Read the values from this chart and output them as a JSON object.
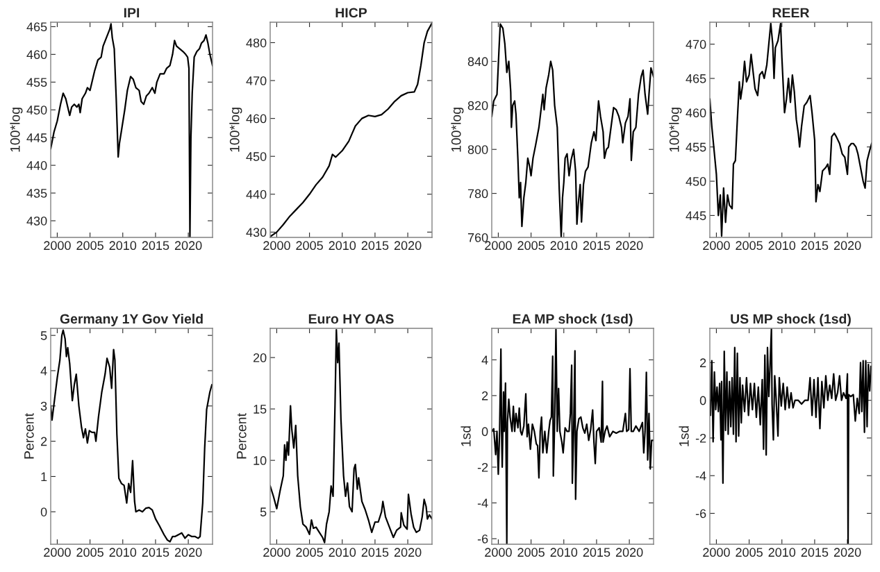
{
  "chart_data": [
    {
      "type": "line",
      "title": "IPI",
      "ylabel": "100*log",
      "xlim": [
        1999.0,
        2023.7
      ],
      "xticks": [
        2000,
        2005,
        2010,
        2015,
        2020
      ],
      "ylim": [
        427,
        465.8
      ],
      "yticks": [
        430,
        435,
        440,
        445,
        450,
        455,
        460,
        465
      ],
      "grid": false,
      "series": [
        {
          "color": "#000000",
          "x": [
            1999.0,
            1999.5,
            2000.0,
            2000.5,
            2000.9,
            2001.3,
            2001.6,
            2001.9,
            2002.2,
            2002.6,
            2003.0,
            2003.3,
            2003.5,
            2003.8,
            2004.3,
            2004.6,
            2005.0,
            2005.3,
            2005.7,
            2006.2,
            2006.7,
            2007.0,
            2007.5,
            2008.0,
            2008.2,
            2008.4,
            2008.7,
            2009.0,
            2009.3,
            2009.5,
            2009.9,
            2010.3,
            2010.7,
            2011.2,
            2011.6,
            2012.0,
            2012.5,
            2012.8,
            2013.2,
            2013.6,
            2014.0,
            2014.5,
            2014.9,
            2015.2,
            2015.7,
            2016.3,
            2016.7,
            2017.2,
            2017.6,
            2017.9,
            2018.2,
            2018.7,
            2019.2,
            2019.6,
            2019.9,
            2020.1,
            2020.25,
            2020.4,
            2020.6,
            2020.9,
            2021.3,
            2021.7,
            2022.0,
            2022.4,
            2022.7,
            2023.0,
            2023.3,
            2023.7
          ],
          "values": [
            443,
            446,
            448,
            451,
            453,
            452,
            450.5,
            449,
            450.5,
            451,
            450.5,
            451,
            449.5,
            452,
            453,
            454,
            453.5,
            455,
            457,
            459,
            459.5,
            461.5,
            463,
            464.5,
            465.5,
            463,
            461,
            452,
            441.5,
            444,
            447,
            450,
            453.5,
            456,
            455.5,
            454,
            453.5,
            451.5,
            451,
            452.5,
            453,
            454,
            453,
            455,
            456.5,
            456.5,
            457.5,
            458,
            460,
            462.5,
            461.5,
            461,
            460.5,
            460,
            459.5,
            457.5,
            427,
            445,
            453,
            459.5,
            460.5,
            461,
            462,
            462.5,
            463.5,
            462,
            460,
            458
          ]
        }
      ]
    },
    {
      "type": "line",
      "title": "HICP",
      "ylabel": "100*log",
      "xlim": [
        1999.0,
        2023.7
      ],
      "xticks": [
        2000,
        2005,
        2010,
        2015,
        2020
      ],
      "ylim": [
        428.6,
        485.4
      ],
      "yticks": [
        430,
        440,
        450,
        460,
        470,
        480
      ],
      "grid": false,
      "series": [
        {
          "color": "#000000",
          "x": [
            1999.0,
            2000.0,
            2001.0,
            2002.0,
            2003.0,
            2004.0,
            2005.0,
            2006.0,
            2007.0,
            2008.0,
            2008.5,
            2009.0,
            2010.0,
            2011.0,
            2012.0,
            2013.0,
            2014.0,
            2015.0,
            2016.0,
            2017.0,
            2018.0,
            2019.0,
            2020.0,
            2021.0,
            2021.5,
            2022.0,
            2022.5,
            2023.0,
            2023.7
          ],
          "values": [
            428.8,
            430,
            432,
            434.2,
            436,
            437.8,
            440,
            442.5,
            444.5,
            447.5,
            450.5,
            449.8,
            451.5,
            454,
            458,
            460,
            460.8,
            460.5,
            461,
            462.5,
            464.5,
            466,
            466.8,
            467,
            469,
            474,
            480,
            483,
            485.2
          ]
        }
      ]
    },
    {
      "type": "line",
      "ylabel": "100*log",
      "xlim": [
        1999.0,
        2023.7
      ],
      "xticks": [
        2000,
        2005,
        2010,
        2015,
        2020
      ],
      "ylim": [
        760,
        857.8
      ],
      "yticks": [
        760,
        780,
        800,
        820,
        840
      ],
      "grid": false,
      "series": [
        {
          "color": "#000000",
          "x": [
            1999.0,
            1999.3,
            1999.8,
            2000.1,
            2000.3,
            2000.7,
            2001.0,
            2001.3,
            2001.6,
            2001.9,
            2002.0,
            2002.2,
            2002.5,
            2002.7,
            2003.0,
            2003.2,
            2003.4,
            2003.6,
            2003.9,
            2004.2,
            2004.5,
            2004.8,
            2005.0,
            2005.3,
            2005.7,
            2006.2,
            2006.6,
            2006.8,
            2007.0,
            2007.3,
            2007.7,
            2008.0,
            2008.3,
            2008.6,
            2009.0,
            2009.3,
            2009.6,
            2009.8,
            2010.0,
            2010.2,
            2010.5,
            2010.8,
            2011.1,
            2011.5,
            2011.8,
            2012.0,
            2012.2,
            2012.5,
            2012.7,
            2013.0,
            2013.3,
            2013.7,
            2014.2,
            2014.6,
            2014.9,
            2015.3,
            2015.6,
            2016.0,
            2016.2,
            2016.5,
            2016.8,
            2017.2,
            2017.6,
            2018.0,
            2018.4,
            2018.8,
            2019.0,
            2019.4,
            2019.8,
            2020.1,
            2020.3,
            2020.6,
            2021.0,
            2021.4,
            2021.8,
            2022.1,
            2022.4,
            2022.8,
            2023.0,
            2023.3,
            2023.7
          ],
          "values": [
            815,
            822,
            825,
            845,
            857,
            855,
            848,
            835,
            840,
            826,
            810,
            820,
            822,
            816,
            795,
            778,
            785,
            765,
            778,
            785,
            796,
            792,
            788,
            796,
            802,
            810,
            820,
            825,
            818,
            828,
            834,
            840,
            836,
            820,
            810,
            782,
            760,
            778,
            785,
            796,
            798,
            788,
            795,
            800,
            790,
            766,
            775,
            784,
            767,
            784,
            790,
            792,
            803,
            808,
            804,
            822,
            815,
            808,
            796,
            800,
            801,
            810,
            819,
            818,
            815,
            810,
            803,
            812,
            815,
            823,
            795,
            808,
            810,
            825,
            833,
            836,
            825,
            816,
            825,
            837,
            833
          ]
        }
      ]
    },
    {
      "type": "line",
      "title": "REER",
      "ylabel": "100*log",
      "xlim": [
        1999.0,
        2023.7
      ],
      "xticks": [
        2000,
        2005,
        2010,
        2015,
        2020
      ],
      "ylim": [
        441.8,
        473.2
      ],
      "yticks": [
        445,
        450,
        455,
        460,
        465,
        470
      ],
      "grid": false,
      "series": [
        {
          "color": "#000000",
          "x": [
            1999.0,
            1999.3,
            1999.6,
            2000.0,
            2000.3,
            2000.6,
            2000.8,
            2001.1,
            2001.4,
            2001.7,
            2002.0,
            2002.4,
            2002.6,
            2002.9,
            2003.2,
            2003.5,
            2003.7,
            2004.0,
            2004.3,
            2004.6,
            2005.0,
            2005.3,
            2005.6,
            2005.9,
            2006.3,
            2006.6,
            2007.0,
            2007.3,
            2007.7,
            2008.0,
            2008.3,
            2008.6,
            2008.8,
            2009.0,
            2009.4,
            2009.8,
            2010.0,
            2010.4,
            2010.7,
            2011.0,
            2011.3,
            2011.6,
            2011.9,
            2012.2,
            2012.5,
            2012.7,
            2013.0,
            2013.4,
            2013.8,
            2014.3,
            2014.6,
            2015.0,
            2015.2,
            2015.5,
            2015.8,
            2016.2,
            2016.7,
            2017.0,
            2017.3,
            2017.6,
            2018.0,
            2018.3,
            2018.8,
            2019.2,
            2019.6,
            2020.0,
            2020.2,
            2020.6,
            2020.9,
            2021.3,
            2021.6,
            2022.0,
            2022.4,
            2022.7,
            2023.0,
            2023.4,
            2023.7
          ],
          "values": [
            462,
            458,
            455,
            451,
            445,
            448,
            442,
            449,
            444,
            448,
            446.5,
            446,
            452.5,
            453,
            459,
            464.5,
            462,
            464,
            467.5,
            464.5,
            465.5,
            468.5,
            466,
            463.5,
            462.5,
            465.5,
            466,
            465,
            467,
            470,
            473,
            470,
            465,
            469.5,
            470.5,
            473,
            468,
            460,
            462,
            465,
            461.5,
            465.5,
            463,
            459,
            457,
            455,
            458,
            461,
            461.5,
            462.5,
            460,
            456,
            447,
            449.5,
            448.5,
            451.5,
            452,
            452.5,
            451,
            456.5,
            457,
            456.5,
            455.5,
            454,
            453.5,
            451,
            455,
            455.5,
            455.5,
            455,
            454,
            452,
            450,
            449,
            453,
            454.5,
            455.5
          ]
        }
      ]
    },
    {
      "type": "line",
      "title": "Germany 1Y Gov Yield",
      "ylabel": "Percent",
      "xlim": [
        1999.0,
        2023.7
      ],
      "xticks": [
        2000,
        2005,
        2010,
        2015,
        2020
      ],
      "ylim": [
        -0.92,
        5.2
      ],
      "yticks": [
        0,
        1,
        2,
        3,
        4,
        5
      ],
      "grid": false,
      "series": [
        {
          "color": "#000000",
          "x": [
            1999.0,
            1999.2,
            1999.6,
            2000.0,
            2000.4,
            2000.7,
            2000.9,
            2001.2,
            2001.4,
            2001.6,
            2001.9,
            2002.3,
            2002.6,
            2002.9,
            2003.3,
            2003.7,
            2004.0,
            2004.3,
            2004.6,
            2004.9,
            2005.3,
            2005.7,
            2005.9,
            2006.3,
            2006.8,
            2007.3,
            2007.6,
            2008.0,
            2008.3,
            2008.6,
            2008.8,
            2009.1,
            2009.4,
            2009.8,
            2010.2,
            2010.6,
            2010.9,
            2011.2,
            2011.5,
            2011.8,
            2012.0,
            2012.5,
            2013.0,
            2013.5,
            2014.0,
            2014.5,
            2015.0,
            2015.6,
            2016.3,
            2016.8,
            2017.2,
            2017.6,
            2018.0,
            2018.5,
            2019.0,
            2019.5,
            2020.0,
            2020.5,
            2021.0,
            2021.5,
            2021.8,
            2022.2,
            2022.5,
            2022.8,
            2023.0,
            2023.3,
            2023.6
          ],
          "values": [
            3.0,
            2.6,
            3.2,
            3.8,
            4.3,
            5.0,
            5.15,
            4.9,
            4.4,
            4.65,
            4.2,
            3.15,
            3.6,
            3.9,
            3.0,
            2.4,
            2.1,
            2.35,
            1.95,
            2.3,
            2.25,
            2.25,
            2.0,
            2.7,
            3.4,
            3.9,
            4.35,
            4.1,
            3.5,
            4.6,
            4.3,
            2.2,
            0.95,
            0.8,
            0.75,
            0.25,
            0.8,
            0.55,
            1.45,
            0.3,
            0.0,
            0.05,
            0.0,
            0.1,
            0.12,
            0.05,
            -0.2,
            -0.4,
            -0.65,
            -0.8,
            -0.85,
            -0.7,
            -0.7,
            -0.65,
            -0.6,
            -0.75,
            -0.65,
            -0.7,
            -0.7,
            -0.75,
            -0.7,
            0.25,
            1.8,
            2.9,
            3.1,
            3.4,
            3.6
          ]
        }
      ]
    },
    {
      "type": "line",
      "title": "Euro HY OAS",
      "ylabel": "Percent",
      "xlim": [
        1999.0,
        2023.7
      ],
      "xticks": [
        2000,
        2005,
        2010,
        2015,
        2020
      ],
      "ylim": [
        1.84,
        22.84
      ],
      "yticks": [
        5,
        10,
        15,
        20
      ],
      "grid": false,
      "series": [
        {
          "color": "#000000",
          "x": [
            1999.0,
            1999.5,
            2000.0,
            2000.5,
            2001.0,
            2001.2,
            2001.4,
            2001.6,
            2001.8,
            2002.1,
            2002.3,
            2002.6,
            2002.9,
            2003.2,
            2003.6,
            2004.0,
            2004.5,
            2005.0,
            2005.3,
            2005.6,
            2006.0,
            2006.5,
            2007.0,
            2007.3,
            2007.6,
            2008.0,
            2008.3,
            2008.6,
            2008.9,
            2009.1,
            2009.3,
            2009.5,
            2009.8,
            2010.2,
            2010.5,
            2010.8,
            2011.1,
            2011.5,
            2011.8,
            2012.0,
            2012.3,
            2012.5,
            2013.0,
            2013.5,
            2014.0,
            2014.5,
            2015.0,
            2015.5,
            2016.0,
            2016.2,
            2016.6,
            2017.2,
            2017.8,
            2018.3,
            2018.9,
            2019.0,
            2019.4,
            2019.9,
            2020.1,
            2020.5,
            2020.9,
            2021.3,
            2021.8,
            2022.2,
            2022.5,
            2022.8,
            2023.0,
            2023.3,
            2023.7
          ],
          "values": [
            7.5,
            6.5,
            5.3,
            7.0,
            8.5,
            11.5,
            10,
            11.8,
            10.5,
            15.3,
            13.0,
            11.2,
            13.4,
            8.5,
            5.5,
            3.8,
            3.5,
            2.8,
            4.2,
            3.4,
            3.5,
            3.0,
            2.5,
            2.0,
            3.8,
            5.0,
            7.5,
            6.5,
            15.5,
            22.7,
            19.5,
            21.4,
            14.0,
            8.5,
            6.5,
            7.8,
            5.5,
            5.0,
            9.2,
            9.6,
            7.2,
            8.3,
            6.0,
            5.2,
            4.2,
            3.0,
            4.0,
            4.0,
            5.0,
            6.0,
            4.5,
            3.5,
            2.5,
            3.2,
            3.5,
            4.9,
            3.7,
            3.3,
            6.7,
            4.8,
            3.5,
            3.0,
            3.2,
            4.5,
            6.2,
            5.5,
            4.3,
            4.7,
            4.3
          ]
        }
      ]
    },
    {
      "type": "line",
      "title": "EA MP shock (1sd)",
      "ylabel": "1sd",
      "xlim": [
        1999.0,
        2023.7
      ],
      "xticks": [
        2000,
        2005,
        2010,
        2015,
        2020
      ],
      "ylim": [
        -6.31,
        5.76
      ],
      "yticks": [
        -6,
        -4,
        -2,
        0,
        2,
        4
      ],
      "grid": false,
      "series": [
        {
          "color": "#000000",
          "x": [
            1999.0,
            1999.3,
            1999.6,
            1999.8,
            2000.0,
            2000.2,
            2000.4,
            2000.5,
            2000.6,
            2000.8,
            2000.9,
            2001.1,
            2001.3,
            2001.4,
            2001.6,
            2001.8,
            2002.1,
            2002.3,
            2002.5,
            2002.7,
            2003.0,
            2003.2,
            2003.4,
            2003.6,
            2003.9,
            2004.2,
            2004.4,
            2004.6,
            2004.9,
            2005.2,
            2005.5,
            2005.8,
            2006.0,
            2006.2,
            2006.4,
            2006.6,
            2006.8,
            2007.1,
            2007.4,
            2007.7,
            2007.9,
            2008.1,
            2008.3,
            2008.4,
            2008.6,
            2008.8,
            2009.0,
            2009.2,
            2009.4,
            2009.7,
            2009.9,
            2010.2,
            2010.5,
            2010.8,
            2011.0,
            2011.2,
            2011.3,
            2011.5,
            2011.7,
            2011.8,
            2012.0,
            2012.3,
            2012.6,
            2012.9,
            2013.2,
            2013.5,
            2013.8,
            2014.1,
            2014.4,
            2014.6,
            2014.8,
            2015.0,
            2015.4,
            2015.7,
            2015.9,
            2016.0,
            2016.3,
            2016.6,
            2017.0,
            2017.5,
            2018.0,
            2018.5,
            2019.0,
            2019.4,
            2019.6,
            2019.9,
            2020.1,
            2020.3,
            2020.6,
            2021.0,
            2021.5,
            2022.0,
            2022.2,
            2022.4,
            2022.6,
            2022.8,
            2023.0,
            2023.2,
            2023.4,
            2023.7
          ],
          "values": [
            0.0,
            0.15,
            -1.3,
            0.0,
            -2.4,
            0.0,
            4.6,
            0.0,
            -2.0,
            2.2,
            0.0,
            2.7,
            -6.3,
            0.5,
            1.8,
            0.8,
            0.0,
            1.4,
            0.0,
            1.0,
            0.2,
            1.3,
            0.0,
            -0.2,
            0.3,
            2.1,
            -0.3,
            0.4,
            -1.0,
            0.4,
            0.0,
            -0.7,
            -0.8,
            -2.6,
            0.0,
            0.8,
            -1.2,
            0.0,
            -1.2,
            0.0,
            0.6,
            0.8,
            4.2,
            -2.5,
            0.5,
            5.7,
            0.0,
            2.4,
            0.0,
            -0.6,
            -1.2,
            0.2,
            0.0,
            0.0,
            1.0,
            3.7,
            -2.9,
            0.0,
            4.5,
            -3.8,
            0.0,
            0.7,
            0.8,
            0.2,
            -0.1,
            0.4,
            -0.5,
            0.1,
            1.2,
            -0.6,
            -1.8,
            0.0,
            0.2,
            -0.6,
            2.8,
            -0.6,
            0.0,
            0.3,
            -0.3,
            0.0,
            -0.1,
            0.0,
            0.0,
            1.0,
            0.0,
            0.1,
            3.5,
            0.0,
            0.0,
            0.3,
            0.0,
            0.5,
            -1.2,
            0.0,
            3.3,
            -1.6,
            1.0,
            -2.1,
            -0.5,
            -0.5
          ]
        }
      ]
    },
    {
      "type": "line",
      "title": "US MP shock (1sd)",
      "ylabel": "1sd",
      "xlim": [
        1999.0,
        2023.7
      ],
      "xticks": [
        2000,
        2005,
        2010,
        2015,
        2020
      ],
      "ylim": [
        -7.64,
        3.82
      ],
      "yticks": [
        -6,
        -4,
        -2,
        0,
        2
      ],
      "grid": false,
      "series": [
        {
          "color": "#000000",
          "x": [
            1999.0,
            1999.1,
            1999.3,
            1999.5,
            1999.7,
            1999.9,
            2000.1,
            2000.3,
            2000.5,
            2000.7,
            2000.8,
            2001.0,
            2001.2,
            2001.4,
            2001.6,
            2001.8,
            2002.0,
            2002.2,
            2002.4,
            2002.6,
            2002.8,
            2003.0,
            2003.2,
            2003.4,
            2003.6,
            2003.8,
            2004.0,
            2004.3,
            2004.6,
            2004.9,
            2005.2,
            2005.5,
            2005.8,
            2006.1,
            2006.4,
            2006.7,
            2007.0,
            2007.2,
            2007.4,
            2007.6,
            2007.8,
            2008.0,
            2008.2,
            2008.4,
            2008.5,
            2008.7,
            2008.9,
            2009.1,
            2009.4,
            2009.6,
            2009.9,
            2010.2,
            2010.5,
            2010.8,
            2011.1,
            2011.4,
            2011.7,
            2012.0,
            2012.5,
            2013.0,
            2013.5,
            2014.0,
            2014.3,
            2014.6,
            2014.9,
            2015.2,
            2015.5,
            2015.8,
            2016.1,
            2016.4,
            2016.7,
            2017.0,
            2017.3,
            2017.6,
            2017.9,
            2018.2,
            2018.5,
            2018.8,
            2019.1,
            2019.4,
            2019.8,
            2020.0,
            2020.1,
            2020.2,
            2020.5,
            2020.9,
            2021.2,
            2021.5,
            2021.8,
            2022.0,
            2022.2,
            2022.4,
            2022.6,
            2022.8,
            2023.0,
            2023.2,
            2023.4,
            2023.6
          ],
          "values": [
            0.0,
            -0.8,
            2.1,
            -2.2,
            1.5,
            -0.5,
            0.7,
            -0.6,
            0.9,
            -2.1,
            1.0,
            -4.4,
            2.6,
            -1.6,
            1.5,
            -1.8,
            1.0,
            -1.4,
            1.2,
            -1.8,
            2.8,
            -2.2,
            2.5,
            -1.9,
            1.2,
            -1.2,
            0.8,
            -0.6,
            1.2,
            -0.8,
            0.9,
            -0.5,
            0.9,
            -0.9,
            0.7,
            -1.3,
            1.1,
            -2.6,
            2.4,
            -2.9,
            2.8,
            0.2,
            1.9,
            3.8,
            -0.2,
            -2.1,
            1.3,
            0.2,
            -1.9,
            1.2,
            -0.3,
            0.9,
            -0.5,
            0.7,
            -0.4,
            0.4,
            -0.4,
            0.0,
            0.0,
            -0.2,
            0.0,
            0.0,
            1.2,
            -0.8,
            1.1,
            -0.9,
            1.2,
            -1.5,
            1.0,
            -0.4,
            1.3,
            0.0,
            0.8,
            0.1,
            1.4,
            0.0,
            0.4,
            1.3,
            0.0,
            0.4,
            0.1,
            1.4,
            -7.6,
            0.3,
            0.2,
            0.3,
            -1.1,
            0.1,
            -0.7,
            2.0,
            -0.6,
            2.1,
            -1.7,
            2.1,
            -1.4,
            1.9,
            0.5,
            1.8
          ]
        }
      ]
    }
  ]
}
